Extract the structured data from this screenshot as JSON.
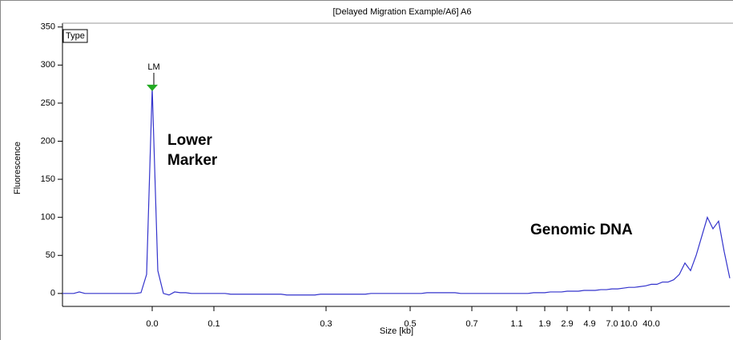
{
  "chart_data": {
    "type": "line",
    "title": "[Delayed Migration Example/A6] A6",
    "y_label": "Fluorescence",
    "x_label": "Size [kb]",
    "legend_title": "Type",
    "annotations": [
      "LM",
      "Lower",
      "Marker",
      "Genomic DNA"
    ],
    "color": "#3333cc",
    "grid": false,
    "ylim": [
      -17,
      355
    ],
    "yticks": [
      0,
      50,
      100,
      150,
      200,
      250,
      300,
      350
    ],
    "categories": [
      null,
      null,
      null,
      null,
      null,
      null,
      null,
      null,
      null,
      null,
      null,
      null,
      null,
      null,
      null,
      null,
      "0.0",
      null,
      null,
      null,
      null,
      null,
      null,
      null,
      null,
      null,
      null,
      "0.1",
      null,
      null,
      null,
      null,
      null,
      null,
      null,
      null,
      null,
      null,
      null,
      null,
      null,
      null,
      null,
      null,
      null,
      null,
      null,
      "0.3",
      null,
      null,
      null,
      null,
      null,
      null,
      null,
      null,
      null,
      null,
      null,
      null,
      null,
      null,
      "0.5",
      null,
      null,
      null,
      null,
      null,
      null,
      null,
      null,
      null,
      null,
      "0.7",
      null,
      null,
      null,
      null,
      null,
      null,
      null,
      "1.1",
      null,
      null,
      null,
      null,
      "1.9",
      null,
      null,
      null,
      "2.9",
      null,
      null,
      null,
      "4.9",
      null,
      null,
      null,
      "7.0",
      null,
      null,
      "10.0",
      null,
      null,
      null,
      "40.0",
      null,
      null,
      null,
      null,
      null,
      null,
      null,
      null,
      null,
      null,
      null,
      null,
      null,
      null
    ],
    "values": [
      0,
      0,
      0,
      2,
      0,
      0,
      0,
      0,
      0,
      0,
      0,
      0,
      0,
      0,
      1,
      25,
      270,
      30,
      0,
      -2,
      2,
      1,
      1,
      0,
      0,
      0,
      0,
      0,
      0,
      0,
      -1,
      -1,
      -1,
      -1,
      -1,
      -1,
      -1,
      -1,
      -1,
      -1,
      -2,
      -2,
      -2,
      -2,
      -2,
      -2,
      -1,
      -1,
      -1,
      -1,
      -1,
      -1,
      -1,
      -1,
      -1,
      0,
      0,
      0,
      0,
      0,
      0,
      0,
      0,
      0,
      0,
      1,
      1,
      1,
      1,
      1,
      1,
      0,
      0,
      0,
      0,
      0,
      0,
      0,
      0,
      0,
      0,
      0,
      0,
      0,
      1,
      1,
      1,
      2,
      2,
      2,
      3,
      3,
      3,
      4,
      4,
      4,
      5,
      5,
      6,
      6,
      7,
      8,
      8,
      9,
      10,
      12,
      12,
      15,
      15,
      18,
      25,
      40,
      30,
      50,
      75,
      100,
      85,
      95,
      55,
      20
    ]
  }
}
